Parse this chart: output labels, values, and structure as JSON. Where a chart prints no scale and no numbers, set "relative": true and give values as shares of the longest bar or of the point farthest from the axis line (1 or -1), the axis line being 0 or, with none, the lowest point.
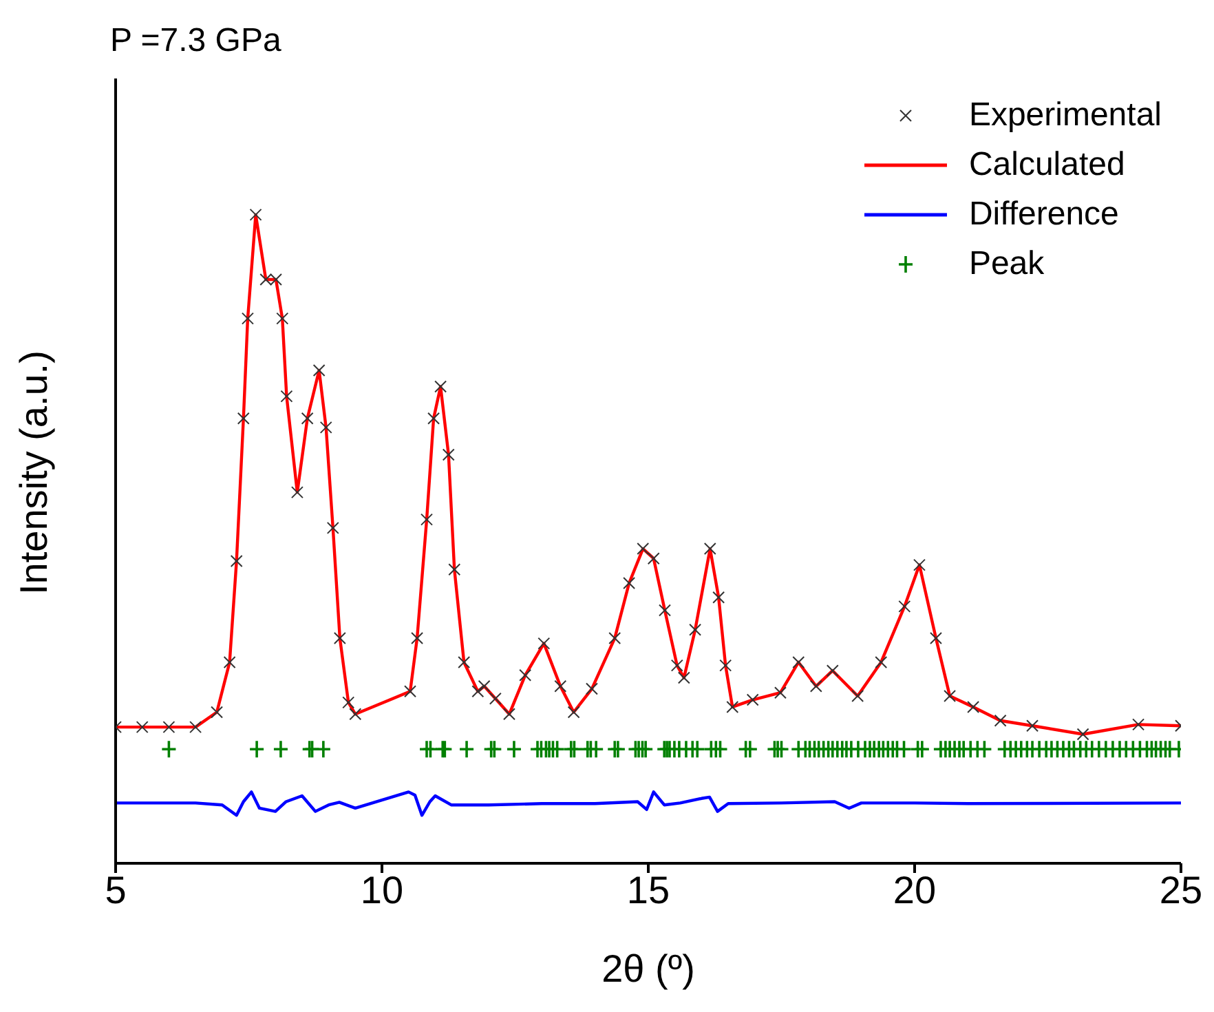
{
  "chart_data": {
    "type": "line",
    "title": "P =7.3 GPa",
    "xlabel": "2θ (º)",
    "ylabel": "Intensity (a.u.)",
    "relative": true,
    "xlim": [
      5,
      25
    ],
    "xticks": [
      5,
      10,
      15,
      20,
      25
    ],
    "grid": false,
    "legend": "top right",
    "series": [
      {
        "name": "Experimental",
        "type": "scatter",
        "marker": "cross",
        "color": "#333333",
        "x": [
          5,
          5.5,
          6,
          6.5,
          6.9,
          7.14,
          7.27,
          7.4,
          7.48,
          7.63,
          7.82,
          8.01,
          8.13,
          8.21,
          8.41,
          8.6,
          8.82,
          8.95,
          9.08,
          9.21,
          9.37,
          9.5,
          10.53,
          10.66,
          10.84,
          10.97,
          11.1,
          11.25,
          11.36,
          11.54,
          11.8,
          11.92,
          12.13,
          12.39,
          12.69,
          13.04,
          13.35,
          13.6,
          13.94,
          14.37,
          14.64,
          14.9,
          15.1,
          15.31,
          15.54,
          15.67,
          15.88,
          16.16,
          16.32,
          16.45,
          16.58,
          16.96,
          17.48,
          17.82,
          18.15,
          18.46,
          18.93,
          19.37,
          19.81,
          20.09,
          20.4,
          20.66,
          21.1,
          21.61,
          22.21,
          23.16,
          24.2,
          25
        ],
        "values": [
          0.21,
          0.21,
          0.21,
          0.21,
          0.233,
          0.31,
          0.466,
          0.686,
          0.84,
          1,
          0.9,
          0.9,
          0.84,
          0.72,
          0.572,
          0.686,
          0.76,
          0.672,
          0.517,
          0.347,
          0.248,
          0.23,
          0.265,
          0.347,
          0.53,
          0.686,
          0.735,
          0.63,
          0.453,
          0.31,
          0.265,
          0.273,
          0.254,
          0.23,
          0.29,
          0.339,
          0.273,
          0.233,
          0.269,
          0.347,
          0.432,
          0.485,
          0.47,
          0.39,
          0.305,
          0.286,
          0.36,
          0.485,
          0.41,
          0.305,
          0.241,
          0.252,
          0.263,
          0.31,
          0.273,
          0.297,
          0.258,
          0.31,
          0.396,
          0.46,
          0.347,
          0.258,
          0.241,
          0.22,
          0.212,
          0.199,
          0.214,
          0.212
        ]
      },
      {
        "name": "Calculated",
        "color": "#ff0000",
        "x": [
          5,
          5.5,
          6,
          6.5,
          6.9,
          7.14,
          7.27,
          7.4,
          7.48,
          7.63,
          7.82,
          8.01,
          8.13,
          8.21,
          8.41,
          8.6,
          8.82,
          8.95,
          9.08,
          9.21,
          9.37,
          9.5,
          10.53,
          10.66,
          10.84,
          10.97,
          11.1,
          11.25,
          11.36,
          11.54,
          11.8,
          11.92,
          12.13,
          12.39,
          12.69,
          13.04,
          13.35,
          13.6,
          13.94,
          14.37,
          14.64,
          14.9,
          15.1,
          15.31,
          15.54,
          15.67,
          15.88,
          16.16,
          16.32,
          16.45,
          16.58,
          16.96,
          17.48,
          17.82,
          18.15,
          18.46,
          18.93,
          19.37,
          19.81,
          20.09,
          20.4,
          20.66,
          21.1,
          21.61,
          22.21,
          23.16,
          24.2,
          25
        ],
        "values": [
          0.21,
          0.21,
          0.21,
          0.21,
          0.233,
          0.31,
          0.466,
          0.686,
          0.84,
          1,
          0.9,
          0.9,
          0.84,
          0.72,
          0.572,
          0.686,
          0.76,
          0.672,
          0.517,
          0.347,
          0.248,
          0.23,
          0.265,
          0.347,
          0.53,
          0.686,
          0.735,
          0.63,
          0.453,
          0.31,
          0.265,
          0.273,
          0.254,
          0.23,
          0.29,
          0.339,
          0.273,
          0.233,
          0.269,
          0.347,
          0.432,
          0.485,
          0.47,
          0.39,
          0.305,
          0.286,
          0.36,
          0.485,
          0.41,
          0.305,
          0.241,
          0.252,
          0.263,
          0.31,
          0.273,
          0.297,
          0.258,
          0.31,
          0.396,
          0.46,
          0.347,
          0.258,
          0.241,
          0.22,
          0.212,
          0.199,
          0.214,
          0.212
        ]
      },
      {
        "name": "Difference",
        "color": "#0000ff",
        "x": [
          5,
          6.5,
          7,
          7.27,
          7.4,
          7.55,
          7.7,
          8,
          8.2,
          8.5,
          8.75,
          9,
          9.2,
          9.5,
          10.5,
          10.62,
          10.75,
          10.9,
          11,
          11.3,
          12,
          13,
          14,
          14.8,
          14.97,
          15.1,
          15.3,
          15.6,
          16,
          16.15,
          16.3,
          16.5,
          17.5,
          18.5,
          18.77,
          19,
          20,
          21,
          25
        ],
        "values": [
          0.093,
          0.093,
          0.09,
          0.074,
          0.095,
          0.11,
          0.085,
          0.08,
          0.095,
          0.104,
          0.08,
          0.09,
          0.094,
          0.085,
          0.11,
          0.105,
          0.074,
          0.095,
          0.104,
          0.09,
          0.09,
          0.092,
          0.092,
          0.095,
          0.083,
          0.11,
          0.09,
          0.093,
          0.1,
          0.102,
          0.08,
          0.092,
          0.093,
          0.095,
          0.085,
          0.093,
          0.093,
          0.092,
          0.093
        ]
      },
      {
        "name": "Peak",
        "type": "scatter",
        "color": "#008000",
        "x": [
          6.0,
          7.65,
          8.1,
          8.64,
          8.69,
          8.9,
          10.84,
          10.91,
          11.14,
          11.18,
          11.59,
          12.05,
          12.11,
          12.48,
          12.92,
          12.99,
          13.08,
          13.14,
          13.21,
          13.29,
          13.55,
          13.61,
          13.86,
          13.92,
          14.02,
          14.37,
          14.43,
          14.76,
          14.82,
          14.89,
          14.95,
          15.3,
          15.35,
          15.4,
          15.49,
          15.58,
          15.71,
          15.83,
          15.92,
          16.18,
          16.27,
          16.35,
          16.83,
          16.91,
          17.37,
          17.43,
          17.5,
          17.82,
          17.95,
          18.03,
          18.12,
          18.2,
          18.29,
          18.38,
          18.46,
          18.55,
          18.64,
          18.72,
          18.81,
          18.94,
          19.07,
          19.16,
          19.24,
          19.33,
          19.41,
          19.5,
          19.59,
          19.67,
          19.8,
          20.06,
          20.14,
          20.49,
          20.58,
          20.66,
          20.75,
          20.84,
          20.92,
          21.05,
          21.18,
          21.31,
          21.69,
          21.8,
          21.9,
          22.0,
          22.11,
          22.21,
          22.34,
          22.47,
          22.57,
          22.68,
          22.79,
          22.9,
          22.99,
          23.11,
          23.22,
          23.33,
          23.46,
          23.59,
          23.72,
          23.85,
          23.97,
          24.1,
          24.23,
          24.36,
          24.45,
          24.53,
          24.62,
          24.71,
          24.79,
          24.96
        ],
        "values": [
          0.176,
          0.176,
          0.176,
          0.176,
          0.176,
          0.176,
          0.176,
          0.176,
          0.176,
          0.176,
          0.176,
          0.176,
          0.176,
          0.176,
          0.176,
          0.176,
          0.176,
          0.176,
          0.176,
          0.176,
          0.176,
          0.176,
          0.176,
          0.176,
          0.176,
          0.176,
          0.176,
          0.176,
          0.176,
          0.176,
          0.176,
          0.176,
          0.176,
          0.176,
          0.176,
          0.176,
          0.176,
          0.176,
          0.176,
          0.176,
          0.176,
          0.176,
          0.176,
          0.176,
          0.176,
          0.176,
          0.176,
          0.176,
          0.176,
          0.176,
          0.176,
          0.176,
          0.176,
          0.176,
          0.176,
          0.176,
          0.176,
          0.176,
          0.176,
          0.176,
          0.176,
          0.176,
          0.176,
          0.176,
          0.176,
          0.176,
          0.176,
          0.176,
          0.176,
          0.176,
          0.176,
          0.176,
          0.176,
          0.176,
          0.176,
          0.176,
          0.176,
          0.176,
          0.176,
          0.176,
          0.176,
          0.176,
          0.176,
          0.176,
          0.176,
          0.176,
          0.176,
          0.176,
          0.176,
          0.176,
          0.176,
          0.176,
          0.176,
          0.176,
          0.176,
          0.176,
          0.176,
          0.176,
          0.176,
          0.176,
          0.176,
          0.176,
          0.176,
          0.176,
          0.176,
          0.176,
          0.176,
          0.176,
          0.176,
          0.176
        ]
      }
    ]
  }
}
